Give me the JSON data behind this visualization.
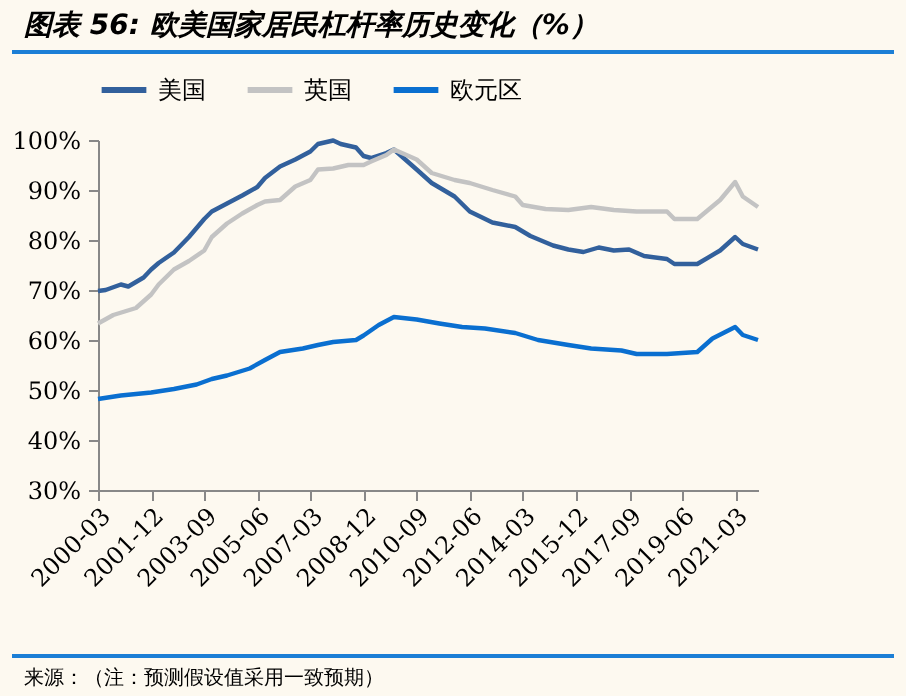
{
  "chart_data": {
    "type": "line",
    "title": "图表 56: 欧美国家居民杠杆率历史变化（%）",
    "annotations": [
      "来源：（注：预测假设值采用一致预期）"
    ],
    "legend": "top",
    "grid": false,
    "marker": "none",
    "line_style": "solid",
    "xlim": [
      "2000-03",
      "2021-12"
    ],
    "xticks": [
      "2000-03",
      "2001-12",
      "2003-09",
      "2005-06",
      "2007-03",
      "2008-12",
      "2010-09",
      "2012-06",
      "2014-03",
      "2015-12",
      "2017-09",
      "2019-06",
      "2021-03"
    ],
    "ylim": [
      30,
      100
    ],
    "yticks": [
      {
        "value": 30,
        "label": "30%"
      },
      {
        "value": 40,
        "label": "40%"
      },
      {
        "value": 50,
        "label": "50%"
      },
      {
        "value": 60,
        "label": "60%"
      },
      {
        "value": 70,
        "label": "70%"
      },
      {
        "value": 80,
        "label": "80%"
      },
      {
        "value": 90,
        "label": "90%"
      },
      {
        "value": 100,
        "label": "100%"
      }
    ],
    "series": [
      {
        "name": "美国",
        "color": "#32609c",
        "x": [
          "2000-03",
          "2000-06",
          "2000-12",
          "2001-03",
          "2001-09",
          "2001-12",
          "2002-03",
          "2002-09",
          "2003-03",
          "2003-09",
          "2003-12",
          "2004-06",
          "2004-12",
          "2005-06",
          "2005-09",
          "2006-03",
          "2006-09",
          "2007-03",
          "2007-06",
          "2007-12",
          "2008-03",
          "2008-09",
          "2008-12",
          "2009-03",
          "2009-09",
          "2009-12",
          "2010-09",
          "2011-03",
          "2011-12",
          "2012-06",
          "2013-03",
          "2013-12",
          "2014-06",
          "2015-03",
          "2015-09",
          "2016-03",
          "2016-09",
          "2017-03",
          "2017-09",
          "2018-03",
          "2018-12",
          "2019-03",
          "2019-12",
          "2020-09",
          "2021-03",
          "2021-06",
          "2021-12"
        ],
        "values": [
          69.8,
          70,
          71.1,
          70.7,
          72.5,
          74.1,
          75.4,
          77.5,
          80.6,
          84.2,
          85.7,
          87.3,
          88.9,
          90.6,
          92.4,
          94.7,
          96.1,
          97.7,
          99.2,
          99.9,
          99.2,
          98.5,
          96.8,
          96.4,
          97.4,
          98.1,
          94.1,
          91.4,
          88.7,
          85.7,
          83.5,
          82.6,
          80.8,
          78.9,
          78.1,
          77.6,
          78.5,
          77.9,
          78.1,
          76.8,
          76.2,
          75.2,
          75.2,
          77.9,
          80.6,
          79.2,
          78.1
        ]
      },
      {
        "name": "英国",
        "color": "#c3c3c3",
        "x": [
          "2000-03",
          "2000-09",
          "2001-06",
          "2001-12",
          "2002-03",
          "2002-09",
          "2003-03",
          "2003-09",
          "2003-12",
          "2004-06",
          "2004-12",
          "2005-06",
          "2005-09",
          "2006-03",
          "2006-09",
          "2007-03",
          "2007-06",
          "2007-12",
          "2008-06",
          "2008-12",
          "2009-03",
          "2009-09",
          "2009-12",
          "2010-09",
          "2011-03",
          "2011-12",
          "2012-06",
          "2013-03",
          "2013-12",
          "2014-03",
          "2014-12",
          "2015-09",
          "2016-06",
          "2017-03",
          "2017-12",
          "2018-12",
          "2019-03",
          "2019-12",
          "2020-09",
          "2021-03",
          "2021-06",
          "2021-12"
        ],
        "values": [
          63.3,
          65,
          66.4,
          69.1,
          71.1,
          74.1,
          75.8,
          77.9,
          80.6,
          83.3,
          85.3,
          87,
          87.7,
          88,
          90.7,
          92,
          94.1,
          94.3,
          95,
          95,
          95.7,
          97,
          98.1,
          96.1,
          93.4,
          92,
          91.4,
          90,
          88.7,
          87,
          86.2,
          86,
          86.6,
          86,
          85.7,
          85.7,
          84.2,
          84.2,
          88,
          91.6,
          88.7,
          86.6
        ]
      },
      {
        "name": "欧元区",
        "color": "#0a6fd0",
        "x": [
          "2000-03",
          "2000-12",
          "2001-12",
          "2002-09",
          "2003-06",
          "2003-12",
          "2004-06",
          "2005-03",
          "2005-09",
          "2006-03",
          "2006-12",
          "2007-06",
          "2007-12",
          "2008-09",
          "2008-12",
          "2009-06",
          "2009-12",
          "2010-09",
          "2011-06",
          "2012-03",
          "2012-12",
          "2013-12",
          "2014-09",
          "2015-09",
          "2016-06",
          "2017-06",
          "2017-12",
          "2018-12",
          "2019-12",
          "2020-06",
          "2021-03",
          "2021-06",
          "2021-12"
        ],
        "values": [
          48.2,
          48.9,
          49.5,
          50.2,
          51.1,
          52.2,
          52.9,
          54.3,
          56,
          57.6,
          58.3,
          59,
          59.6,
          60,
          60.9,
          63,
          64.6,
          64.1,
          63.3,
          62.6,
          62.3,
          61.4,
          60,
          59,
          58.3,
          57.9,
          57.2,
          57.2,
          57.6,
          60.3,
          62.6,
          61,
          60
        ]
      }
    ]
  }
}
